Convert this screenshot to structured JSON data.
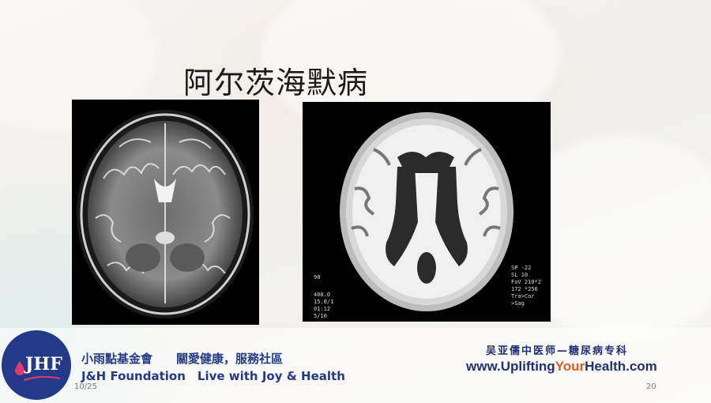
{
  "slide": {
    "title": "阿尔茨海默病",
    "date": "10/25",
    "page_number": "20"
  },
  "scan_right_overlay": {
    "lines_right": [
      "SP   -22",
      "SL    10",
      "FoV 210*2",
      "172 *256",
      "Tra>Cor",
      ">Sag"
    ],
    "lines_left": [
      "90",
      "400.0",
      "15.0/1",
      "01:12",
      "5/10"
    ]
  },
  "footer": {
    "org_cn": "小雨點基金會　　關愛健康，服務社區",
    "org_en": "J&H Foundation　Live with Joy & Health",
    "logo_text": "JHF",
    "tcm_line": "吴亚儒中医师—糖尿病专科",
    "url_prefix": "www.Uplifting",
    "url_accent": "Your",
    "url_suffix": "Health.com",
    "colors": {
      "brand_blue": "#233a8a",
      "accent_orange": "#e05a18",
      "logo_drop": "#e23b6a"
    }
  }
}
